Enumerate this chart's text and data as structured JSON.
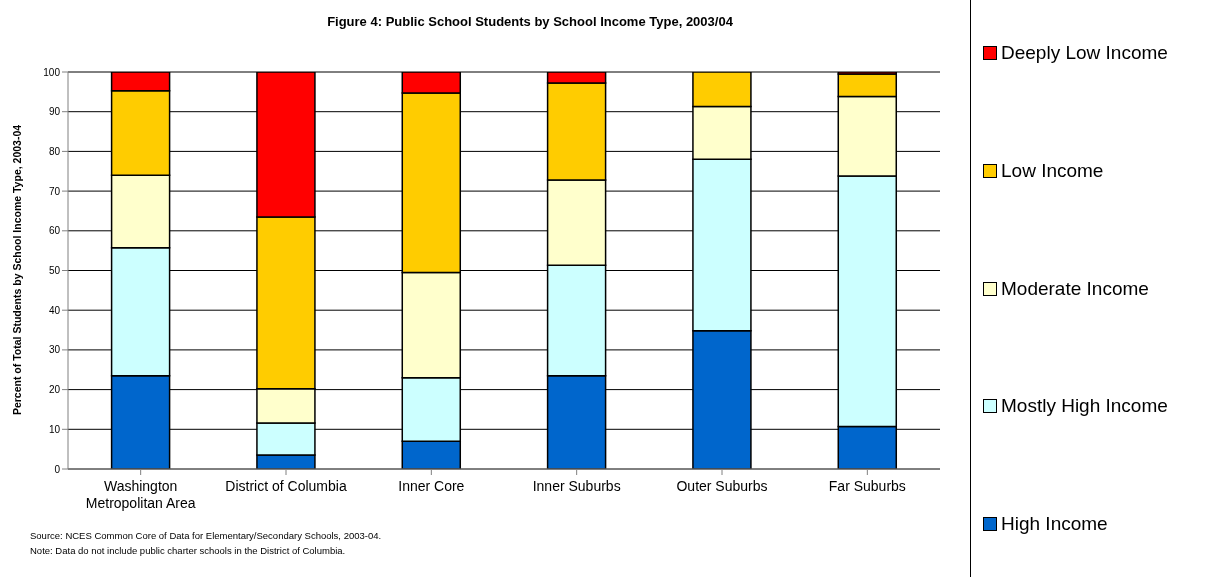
{
  "chart_data": {
    "type": "bar",
    "stacked": true,
    "title": "Figure 4: Public School Students by School Income Type, 2003/04",
    "ylabel": "Percent of Total Students by School Income Type, 2003-04",
    "categories": [
      "Washington Metropolitan Area",
      "District of Columbia",
      "Inner Core",
      "Inner Suburbs",
      "Outer Suburbs",
      "Far Suburbs"
    ],
    "series": [
      {
        "name": "High Income",
        "color": "#0066cc",
        "values": [
          23.5,
          3.5,
          7,
          23.5,
          34.8,
          10.7
        ]
      },
      {
        "name": "Mostly High Income",
        "color": "#ccffff",
        "values": [
          32.2,
          8.1,
          16,
          27.8,
          43.2,
          63.1
        ]
      },
      {
        "name": "Moderate Income",
        "color": "#ffffcc",
        "values": [
          18.3,
          8.6,
          26.5,
          21.5,
          13.3,
          20
        ]
      },
      {
        "name": "Low Income",
        "color": "#ffcc00",
        "values": [
          21.3,
          43.3,
          45.2,
          24.4,
          8.7,
          5.7
        ]
      },
      {
        "name": "Deeply Low Income",
        "color": "#ff0000",
        "values": [
          4.7,
          36.5,
          5.3,
          2.8,
          0,
          0.5
        ]
      }
    ],
    "ylim": [
      0,
      100
    ],
    "yticks": [
      0,
      10,
      20,
      30,
      40,
      50,
      60,
      70,
      80,
      90,
      100
    ],
    "grid": "y",
    "legend": "right",
    "annotations": [
      "Source:  NCES Common Core of Data for Elementary/Secondary Schools, 2003-04.",
      "Note: Data do not include public charter schools in the District of Columbia."
    ]
  }
}
